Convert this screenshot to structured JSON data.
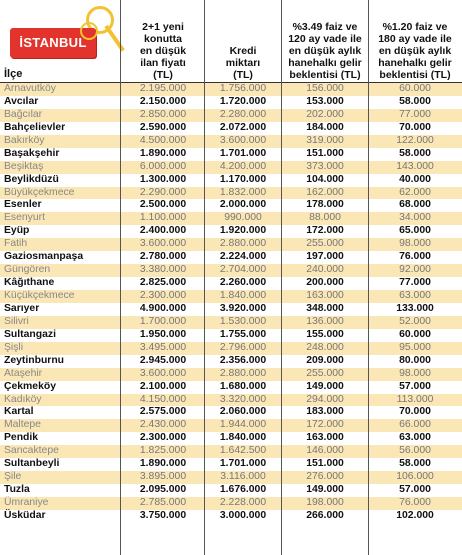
{
  "header": {
    "tag_label": "İSTANBUL",
    "columns": {
      "district": "İlçe",
      "price": [
        "2+1 yeni",
        "konutta",
        "en düşük",
        "ilan fiyatı",
        "(TL)"
      ],
      "loan": [
        "Kredi",
        "miktarı",
        "(TL)"
      ],
      "income_120": [
        "%3.49 faiz ve",
        "120 ay vade ile",
        "en düşük aylık",
        "hanehalkı gelir",
        "beklentisi (TL)"
      ],
      "income_180": [
        "%1.20 faiz ve",
        "180 ay vade ile",
        "en düşük aylık",
        "hanehalkı gelir",
        "beklentisi (TL)"
      ]
    }
  },
  "rows": [
    {
      "district": "Arnavutköy",
      "price": "2.195.000",
      "loan": "1.756.000",
      "inc120": "156.000",
      "inc180": "60.000",
      "bold": false
    },
    {
      "district": "Avcılar",
      "price": "2.150.000",
      "loan": "1.720.000",
      "inc120": "153.000",
      "inc180": "58.000",
      "bold": true
    },
    {
      "district": "Bağcılar",
      "price": "2.850.000",
      "loan": "2.280.000",
      "inc120": "202.000",
      "inc180": "77.000",
      "bold": false
    },
    {
      "district": "Bahçelievler",
      "price": "2.590.000",
      "loan": "2.072.000",
      "inc120": "184.000",
      "inc180": "70.000",
      "bold": true
    },
    {
      "district": "Bakırköy",
      "price": "4.500.000",
      "loan": "3.600.000",
      "inc120": "319.000",
      "inc180": "122.000",
      "bold": false
    },
    {
      "district": "Başakşehir",
      "price": "1.890.000",
      "loan": "1.701.000",
      "inc120": "151.000",
      "inc180": "58.000",
      "bold": true
    },
    {
      "district": "Beşiktaş",
      "price": "6.000.000",
      "loan": "4.200.000",
      "inc120": "373.000",
      "inc180": "143.000",
      "bold": false
    },
    {
      "district": "Beylikdüzü",
      "price": "1.300.000",
      "loan": "1.170.000",
      "inc120": "104.000",
      "inc180": "40.000",
      "bold": true
    },
    {
      "district": "Büyükçekmece",
      "price": "2.290.000",
      "loan": "1.832.000",
      "inc120": "162.000",
      "inc180": "62.000",
      "bold": false
    },
    {
      "district": "Esenler",
      "price": "2.500.000",
      "loan": "2.000.000",
      "inc120": "178.000",
      "inc180": "68.000",
      "bold": true
    },
    {
      "district": "Esenyurt",
      "price": "1.100.000",
      "loan": "990.000",
      "inc120": "88.000",
      "inc180": "34.000",
      "bold": false
    },
    {
      "district": "Eyüp",
      "price": "2.400.000",
      "loan": "1.920.000",
      "inc120": "172.000",
      "inc180": "65.000",
      "bold": true
    },
    {
      "district": "Fatih",
      "price": "3.600.000",
      "loan": "2.880.000",
      "inc120": "255.000",
      "inc180": "98.000",
      "bold": false
    },
    {
      "district": "Gaziosmanpaşa",
      "price": "2.780.000",
      "loan": "2.224.000",
      "inc120": "197.000",
      "inc180": "76.000",
      "bold": true
    },
    {
      "district": "Güngören",
      "price": "3.380.000",
      "loan": "2.704.000",
      "inc120": "240.000",
      "inc180": "92.000",
      "bold": false
    },
    {
      "district": "Kâğıthane",
      "price": "2.825.000",
      "loan": "2.260.000",
      "inc120": "200.000",
      "inc180": "77.000",
      "bold": true
    },
    {
      "district": "Küçükçekmece",
      "price": "2.300.000",
      "loan": "1.840.000",
      "inc120": "163.000",
      "inc180": "63.000",
      "bold": false
    },
    {
      "district": "Sarıyer",
      "price": "4.900.000",
      "loan": "3.920.000",
      "inc120": "348.000",
      "inc180": "133.000",
      "bold": true
    },
    {
      "district": "Silivri",
      "price": "1.700.000",
      "loan": "1.530.000",
      "inc120": "136.000",
      "inc180": "52.000",
      "bold": false
    },
    {
      "district": "Sultangazi",
      "price": "1.950.000",
      "loan": "1.755.000",
      "inc120": "155.000",
      "inc180": "60.000",
      "bold": true
    },
    {
      "district": "Şişli",
      "price": "3.495.000",
      "loan": "2.796.000",
      "inc120": "248.000",
      "inc180": "95.000",
      "bold": false
    },
    {
      "district": "Zeytinburnu",
      "price": "2.945.000",
      "loan": "2.356.000",
      "inc120": "209.000",
      "inc180": "80.000",
      "bold": true
    },
    {
      "district": "Ataşehir",
      "price": "3.600.000",
      "loan": "2.880.000",
      "inc120": "255.000",
      "inc180": "98.000",
      "bold": false
    },
    {
      "district": "Çekmeköy",
      "price": "2.100.000",
      "loan": "1.680.000",
      "inc120": "149.000",
      "inc180": "57.000",
      "bold": true
    },
    {
      "district": "Kadıköy",
      "price": "4.150.000",
      "loan": "3.320.000",
      "inc120": "294.000",
      "inc180": "113.000",
      "bold": false
    },
    {
      "district": "Kartal",
      "price": "2.575.000",
      "loan": "2.060.000",
      "inc120": "183.000",
      "inc180": "70.000",
      "bold": true
    },
    {
      "district": "Maltepe",
      "price": "2.430.000",
      "loan": "1.944.000",
      "inc120": "172.000",
      "inc180": "66.000",
      "bold": false
    },
    {
      "district": "Pendik",
      "price": "2.300.000",
      "loan": "1.840.000",
      "inc120": "163.000",
      "inc180": "63.000",
      "bold": true
    },
    {
      "district": "Sancaktepe",
      "price": "1.825.000",
      "loan": "1.642.500",
      "inc120": "146.000",
      "inc180": "56.000",
      "bold": false
    },
    {
      "district": "Sultanbeyli",
      "price": "1.890.000",
      "loan": "1.701.000",
      "inc120": "151.000",
      "inc180": "58.000",
      "bold": true
    },
    {
      "district": "Şile",
      "price": "3.895.000",
      "loan": "3.116.000",
      "inc120": "276.000",
      "inc180": "106.000",
      "bold": false
    },
    {
      "district": "Tuzla",
      "price": "2.095.000",
      "loan": "1.676.000",
      "inc120": "149.000",
      "inc180": "57.000",
      "bold": true
    },
    {
      "district": "Ümraniye",
      "price": "2.785.000",
      "loan": "2.228.000",
      "inc120": "198.000",
      "inc180": "76.000",
      "bold": false
    },
    {
      "district": "Üsküdar",
      "price": "3.750.000",
      "loan": "3.000.000",
      "inc120": "266.000",
      "inc180": "102.000",
      "bold": true
    }
  ],
  "colors": {
    "tag_red": "#e2342c",
    "key_yellow": "#f2c230",
    "alt_row": "#fbe7b6"
  }
}
